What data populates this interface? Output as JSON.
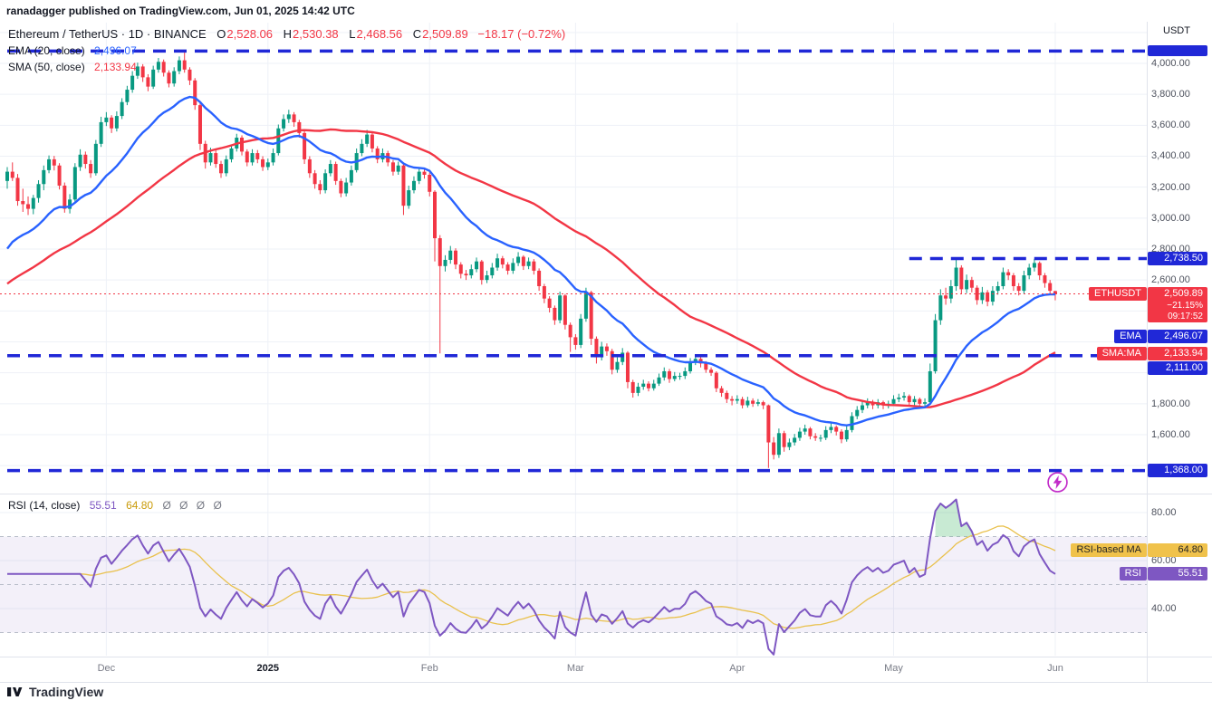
{
  "attribution": "ranadagger published on TradingView.com, Jun 01, 2025 14:42 UTC",
  "header": {
    "title": "Ethereum / TetherUS · 1D · BINANCE",
    "o_label": "O",
    "o": "2,528.06",
    "h_label": "H",
    "h": "2,530.38",
    "l_label": "L",
    "l": "2,468.56",
    "c_label": "C",
    "c": "2,509.89",
    "change": "−18.17 (−0.72%)"
  },
  "legend": {
    "ema_name": "EMA (20, close)",
    "ema_value": "2,496.07",
    "sma_name": "SMA (50, close)",
    "sma_value": "2,133.94",
    "rsi_name": "RSI (14, close)",
    "rsi_value": "55.51",
    "rsi_ma_value": "64.80",
    "rsi_hidden": "Ø Ø Ø Ø"
  },
  "price_axis": {
    "unit": "USDT",
    "ticks": [
      {
        "label": "4,000.00",
        "value": 4000
      },
      {
        "label": "3,800.00",
        "value": 3800
      },
      {
        "label": "3,600.00",
        "value": 3600
      },
      {
        "label": "3,400.00",
        "value": 3400
      },
      {
        "label": "3,200.00",
        "value": 3200
      },
      {
        "label": "3,000.00",
        "value": 3000
      },
      {
        "label": "2,800.00",
        "value": 2800
      },
      {
        "label": "2,600.00",
        "value": 2600
      },
      {
        "label": "1,800.00",
        "value": 1800
      },
      {
        "label": "1,600.00",
        "value": 1600
      }
    ]
  },
  "rsi_axis": {
    "ticks": [
      {
        "label": "80.00",
        "value": 80
      },
      {
        "label": "60.00",
        "value": 60
      },
      {
        "label": "40.00",
        "value": 40
      }
    ]
  },
  "time_axis": [
    {
      "label": "Dec",
      "index": 19,
      "bold": false
    },
    {
      "label": "2025",
      "index": 50,
      "bold": true
    },
    {
      "label": "Feb",
      "index": 81,
      "bold": false
    },
    {
      "label": "Mar",
      "index": 109,
      "bold": false
    },
    {
      "label": "Apr",
      "index": 140,
      "bold": false
    },
    {
      "label": "May",
      "index": 170,
      "bold": false
    },
    {
      "label": "Jun",
      "index": 201,
      "bold": false
    }
  ],
  "badges": {
    "level2738": "2,738.50",
    "symbol": "ETHUSDT",
    "symbol_price": "2,509.89",
    "symbol_change": "−21.15%",
    "symbol_countdown": "09:17:52",
    "ema_name": "EMA",
    "ema_value": "2,496.07",
    "sma_name": "SMA:MA",
    "sma_value": "2,133.94",
    "level2111": "2,111.00",
    "level1368": "1,368.00",
    "rsi_ma_name": "RSI-based MA",
    "rsi_ma_value": "64.80",
    "rsi_name": "RSI",
    "rsi_value": "55.51"
  },
  "footer": {
    "brand": "TradingView"
  },
  "chart_data": {
    "type": "candlestick",
    "pair": "ETHUSDT",
    "exchange": "BINANCE",
    "interval": "1D",
    "start_date": "2024-11-12",
    "price_grid_step": 200,
    "current_price": 2509.89,
    "levels": [
      {
        "price": 4080,
        "start_index": 0
      },
      {
        "price": 2738.5,
        "start_index": 173
      },
      {
        "price": 2111,
        "start_index": 0
      },
      {
        "price": 1368,
        "start_index": 0
      }
    ],
    "rsi_bands": [
      70,
      50,
      30
    ],
    "indicators": {
      "ema_period": 20,
      "ema_seed": 2750,
      "sma_period": 50,
      "sma_prefill_start": 2000,
      "sma_prefill_end": 3100,
      "rsi_period": 14,
      "rsi_ma_period": 14
    },
    "colors": {
      "up": "#089981",
      "down": "#f23645",
      "ema": "#2962ff",
      "sma": "#f23645",
      "rsi": "#7e57c2",
      "rsi_ma": "#e9c14d",
      "level": "#2028d7",
      "grid": "#eef1f7",
      "band_fill": "rgba(126,87,194,0.09)",
      "overbought_fill": "rgba(34,171,80,0.25)",
      "band_line": "#b7bcc8",
      "separator": "#e0e3eb"
    },
    "candles": [
      [
        3240,
        3330,
        3190,
        3300
      ],
      [
        3300,
        3360,
        3240,
        3260
      ],
      [
        3260,
        3285,
        3080,
        3110
      ],
      [
        3110,
        3190,
        3040,
        3090
      ],
      [
        3090,
        3140,
        3020,
        3060
      ],
      [
        3060,
        3150,
        3025,
        3130
      ],
      [
        3130,
        3245,
        3100,
        3220
      ],
      [
        3220,
        3340,
        3180,
        3310
      ],
      [
        3310,
        3405,
        3290,
        3380
      ],
      [
        3380,
        3402,
        3308,
        3340
      ],
      [
        3340,
        3355,
        3185,
        3210
      ],
      [
        3210,
        3230,
        3035,
        3060
      ],
      [
        3060,
        3155,
        3030,
        3120
      ],
      [
        3120,
        3355,
        3105,
        3330
      ],
      [
        3330,
        3445,
        3305,
        3410
      ],
      [
        3410,
        3430,
        3320,
        3350
      ],
      [
        3350,
        3375,
        3260,
        3290
      ],
      [
        3290,
        3505,
        3275,
        3480
      ],
      [
        3480,
        3655,
        3460,
        3620
      ],
      [
        3620,
        3685,
        3595,
        3650
      ],
      [
        3650,
        3665,
        3550,
        3580
      ],
      [
        3580,
        3690,
        3560,
        3660
      ],
      [
        3660,
        3775,
        3640,
        3750
      ],
      [
        3750,
        3855,
        3730,
        3830
      ],
      [
        3830,
        3950,
        3810,
        3920
      ],
      [
        3920,
        4005,
        3900,
        3980
      ],
      [
        3980,
        3995,
        3880,
        3910
      ],
      [
        3910,
        3930,
        3820,
        3850
      ],
      [
        3850,
        3985,
        3835,
        3960
      ],
      [
        3960,
        4035,
        3940,
        4010
      ],
      [
        4010,
        4025,
        3915,
        3940
      ],
      [
        3940,
        3955,
        3845,
        3870
      ],
      [
        3870,
        3975,
        3850,
        3950
      ],
      [
        3950,
        4045,
        3930,
        4020
      ],
      [
        4020,
        4088,
        3940,
        3960
      ],
      [
        3960,
        3975,
        3860,
        3890
      ],
      [
        3890,
        3905,
        3700,
        3730
      ],
      [
        3730,
        3745,
        3440,
        3480
      ],
      [
        3480,
        3500,
        3320,
        3360
      ],
      [
        3360,
        3455,
        3340,
        3420
      ],
      [
        3420,
        3440,
        3325,
        3350
      ],
      [
        3350,
        3370,
        3260,
        3290
      ],
      [
        3290,
        3405,
        3270,
        3380
      ],
      [
        3380,
        3475,
        3360,
        3450
      ],
      [
        3450,
        3545,
        3430,
        3520
      ],
      [
        3520,
        3535,
        3405,
        3430
      ],
      [
        3430,
        3445,
        3335,
        3360
      ],
      [
        3360,
        3445,
        3340,
        3420
      ],
      [
        3420,
        3440,
        3355,
        3380
      ],
      [
        3380,
        3400,
        3305,
        3330
      ],
      [
        3330,
        3385,
        3310,
        3360
      ],
      [
        3360,
        3450,
        3340,
        3420
      ],
      [
        3420,
        3605,
        3405,
        3580
      ],
      [
        3580,
        3670,
        3560,
        3640
      ],
      [
        3640,
        3700,
        3615,
        3670
      ],
      [
        3670,
        3685,
        3590,
        3620
      ],
      [
        3620,
        3635,
        3520,
        3550
      ],
      [
        3550,
        3565,
        3350,
        3380
      ],
      [
        3380,
        3400,
        3260,
        3290
      ],
      [
        3290,
        3310,
        3190,
        3220
      ],
      [
        3220,
        3245,
        3155,
        3180
      ],
      [
        3180,
        3315,
        3160,
        3290
      ],
      [
        3290,
        3375,
        3270,
        3350
      ],
      [
        3350,
        3365,
        3215,
        3240
      ],
      [
        3240,
        3255,
        3135,
        3160
      ],
      [
        3160,
        3260,
        3140,
        3230
      ],
      [
        3230,
        3340,
        3210,
        3310
      ],
      [
        3310,
        3450,
        3295,
        3420
      ],
      [
        3420,
        3510,
        3400,
        3480
      ],
      [
        3480,
        3570,
        3460,
        3540
      ],
      [
        3540,
        3555,
        3425,
        3450
      ],
      [
        3450,
        3465,
        3355,
        3380
      ],
      [
        3380,
        3450,
        3360,
        3420
      ],
      [
        3420,
        3435,
        3335,
        3360
      ],
      [
        3360,
        3375,
        3275,
        3300
      ],
      [
        3300,
        3365,
        3280,
        3340
      ],
      [
        3340,
        3350,
        3020,
        3080
      ],
      [
        3080,
        3210,
        3060,
        3180
      ],
      [
        3180,
        3270,
        3160,
        3240
      ],
      [
        3240,
        3330,
        3220,
        3300
      ],
      [
        3300,
        3320,
        3255,
        3280
      ],
      [
        3280,
        3295,
        3140,
        3170
      ],
      [
        3170,
        3180,
        2720,
        2870
      ],
      [
        2870,
        2890,
        2125,
        2690
      ],
      [
        2690,
        2760,
        2655,
        2730
      ],
      [
        2730,
        2820,
        2705,
        2790
      ],
      [
        2790,
        2805,
        2670,
        2700
      ],
      [
        2700,
        2715,
        2610,
        2640
      ],
      [
        2640,
        2665,
        2600,
        2630
      ],
      [
        2630,
        2700,
        2610,
        2670
      ],
      [
        2670,
        2745,
        2650,
        2720
      ],
      [
        2720,
        2730,
        2570,
        2600
      ],
      [
        2600,
        2660,
        2580,
        2630
      ],
      [
        2630,
        2710,
        2610,
        2680
      ],
      [
        2680,
        2770,
        2660,
        2740
      ],
      [
        2740,
        2755,
        2675,
        2700
      ],
      [
        2700,
        2715,
        2635,
        2660
      ],
      [
        2660,
        2740,
        2640,
        2710
      ],
      [
        2710,
        2780,
        2690,
        2750
      ],
      [
        2750,
        2760,
        2665,
        2690
      ],
      [
        2690,
        2745,
        2670,
        2720
      ],
      [
        2720,
        2735,
        2635,
        2660
      ],
      [
        2660,
        2675,
        2530,
        2560
      ],
      [
        2560,
        2575,
        2450,
        2480
      ],
      [
        2480,
        2495,
        2390,
        2420
      ],
      [
        2420,
        2435,
        2310,
        2340
      ],
      [
        2340,
        2525,
        2320,
        2500
      ],
      [
        2500,
        2510,
        2280,
        2310
      ],
      [
        2310,
        2325,
        2135,
        2230
      ],
      [
        2230,
        2250,
        2150,
        2180
      ],
      [
        2180,
        2380,
        2160,
        2350
      ],
      [
        2350,
        2550,
        2330,
        2520
      ],
      [
        2520,
        2530,
        2180,
        2220
      ],
      [
        2220,
        2235,
        2060,
        2100
      ],
      [
        2100,
        2200,
        2080,
        2170
      ],
      [
        2170,
        2190,
        2110,
        2140
      ],
      [
        2140,
        2155,
        1990,
        2020
      ],
      [
        2020,
        2100,
        2000,
        2070
      ],
      [
        2070,
        2160,
        2050,
        2130
      ],
      [
        2130,
        2140,
        1900,
        1940
      ],
      [
        1940,
        1955,
        1840,
        1870
      ],
      [
        1870,
        1935,
        1850,
        1910
      ],
      [
        1910,
        1955,
        1890,
        1930
      ],
      [
        1930,
        1945,
        1880,
        1900
      ],
      [
        1900,
        1955,
        1885,
        1930
      ],
      [
        1930,
        1995,
        1915,
        1970
      ],
      [
        1970,
        2035,
        1950,
        2010
      ],
      [
        2010,
        2025,
        1935,
        1960
      ],
      [
        1960,
        2005,
        1945,
        1980
      ],
      [
        1980,
        2000,
        1955,
        1980
      ],
      [
        1980,
        2035,
        1960,
        2010
      ],
      [
        2010,
        2095,
        1995,
        2070
      ],
      [
        2070,
        2115,
        2050,
        2090
      ],
      [
        2090,
        2105,
        2035,
        2060
      ],
      [
        2060,
        2075,
        2000,
        2020
      ],
      [
        2020,
        2035,
        1980,
        2000
      ],
      [
        2000,
        2010,
        1875,
        1900
      ],
      [
        1900,
        1915,
        1845,
        1870
      ],
      [
        1870,
        1885,
        1805,
        1830
      ],
      [
        1830,
        1850,
        1790,
        1820
      ],
      [
        1820,
        1855,
        1800,
        1830
      ],
      [
        1830,
        1845,
        1770,
        1790
      ],
      [
        1790,
        1845,
        1775,
        1820
      ],
      [
        1820,
        1835,
        1780,
        1800
      ],
      [
        1800,
        1830,
        1785,
        1810
      ],
      [
        1810,
        1820,
        1765,
        1790
      ],
      [
        1790,
        1795,
        1385,
        1550
      ],
      [
        1550,
        1585,
        1440,
        1470
      ],
      [
        1470,
        1640,
        1450,
        1610
      ],
      [
        1610,
        1625,
        1490,
        1520
      ],
      [
        1520,
        1575,
        1500,
        1550
      ],
      [
        1550,
        1605,
        1530,
        1580
      ],
      [
        1580,
        1645,
        1560,
        1620
      ],
      [
        1620,
        1665,
        1600,
        1640
      ],
      [
        1640,
        1650,
        1570,
        1590
      ],
      [
        1590,
        1610,
        1560,
        1580
      ],
      [
        1580,
        1600,
        1555,
        1580
      ],
      [
        1580,
        1655,
        1565,
        1630
      ],
      [
        1630,
        1675,
        1610,
        1650
      ],
      [
        1650,
        1660,
        1595,
        1620
      ],
      [
        1620,
        1635,
        1545,
        1570
      ],
      [
        1570,
        1655,
        1555,
        1630
      ],
      [
        1630,
        1745,
        1615,
        1720
      ],
      [
        1720,
        1785,
        1700,
        1760
      ],
      [
        1760,
        1815,
        1740,
        1790
      ],
      [
        1790,
        1835,
        1770,
        1810
      ],
      [
        1810,
        1825,
        1765,
        1790
      ],
      [
        1790,
        1830,
        1770,
        1810
      ],
      [
        1810,
        1820,
        1765,
        1790
      ],
      [
        1790,
        1820,
        1770,
        1800
      ],
      [
        1800,
        1855,
        1785,
        1830
      ],
      [
        1830,
        1865,
        1810,
        1840
      ],
      [
        1840,
        1875,
        1820,
        1850
      ],
      [
        1850,
        1860,
        1785,
        1810
      ],
      [
        1810,
        1850,
        1790,
        1830
      ],
      [
        1830,
        1840,
        1775,
        1800
      ],
      [
        1800,
        1835,
        1780,
        1810
      ],
      [
        1810,
        2060,
        1800,
        2010
      ],
      [
        2010,
        2380,
        1995,
        2340
      ],
      [
        2340,
        2540,
        2310,
        2500
      ],
      [
        2500,
        2550,
        2440,
        2480
      ],
      [
        2480,
        2600,
        2450,
        2560
      ],
      [
        2560,
        2738,
        2530,
        2680
      ],
      [
        2680,
        2695,
        2510,
        2540
      ],
      [
        2540,
        2635,
        2515,
        2600
      ],
      [
        2600,
        2620,
        2520,
        2550
      ],
      [
        2550,
        2565,
        2440,
        2470
      ],
      [
        2470,
        2555,
        2445,
        2520
      ],
      [
        2520,
        2535,
        2430,
        2460
      ],
      [
        2460,
        2560,
        2435,
        2530
      ],
      [
        2530,
        2590,
        2505,
        2560
      ],
      [
        2560,
        2680,
        2540,
        2650
      ],
      [
        2650,
        2670,
        2600,
        2630
      ],
      [
        2630,
        2645,
        2530,
        2560
      ],
      [
        2560,
        2580,
        2500,
        2530
      ],
      [
        2530,
        2660,
        2510,
        2630
      ],
      [
        2630,
        2705,
        2605,
        2680
      ],
      [
        2680,
        2737,
        2655,
        2710
      ],
      [
        2710,
        2720,
        2600,
        2630
      ],
      [
        2630,
        2645,
        2550,
        2580
      ],
      [
        2580,
        2600,
        2505,
        2530
      ],
      [
        2528.06,
        2530.38,
        2468.56,
        2509.89
      ]
    ]
  }
}
